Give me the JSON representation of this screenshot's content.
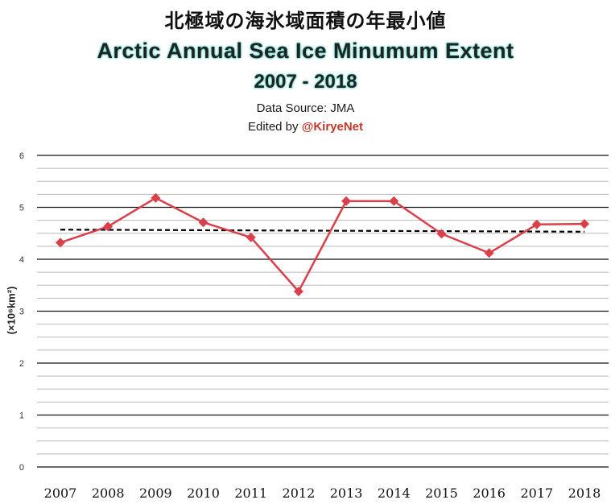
{
  "header": {
    "title_jp": "北極域の海氷域面積の年最小値",
    "title_en": "Arctic Annual Sea Ice Minumum Extent",
    "years": "2007 - 2018",
    "source": "Data Source: JMA",
    "edited_prefix": "Edited by ",
    "edited_handle": "@KiryeNet"
  },
  "colors": {
    "series": "#d9404a",
    "trend": "#000000",
    "title_glow": "#5fd6c8",
    "handle": "#c0392b"
  },
  "chart_data": {
    "type": "line",
    "title": "Arctic Annual Sea Ice Minumum Extent",
    "subtitle": "2007 - 2018",
    "xlabel": "",
    "ylabel": "(×10⁶km²)",
    "ylim": [
      0,
      6
    ],
    "y_ticks": [
      "0",
      "1",
      "2",
      "3",
      "4",
      "5",
      "6"
    ],
    "grid": true,
    "minor_grid_per_major": 4,
    "categories": [
      "2007",
      "2008",
      "2009",
      "2010",
      "2011",
      "2012",
      "2013",
      "2014",
      "2015",
      "2016",
      "2017",
      "2018"
    ],
    "series": [
      {
        "values": [
          4.32,
          4.63,
          5.18,
          4.71,
          4.42,
          3.38,
          5.12,
          5.12,
          4.49,
          4.12,
          4.67,
          4.68
        ],
        "color": "#d9404a",
        "marker": "diamond"
      }
    ],
    "trend": {
      "style": "dashed",
      "color": "#000000",
      "start": 4.57,
      "end": 4.53
    }
  }
}
